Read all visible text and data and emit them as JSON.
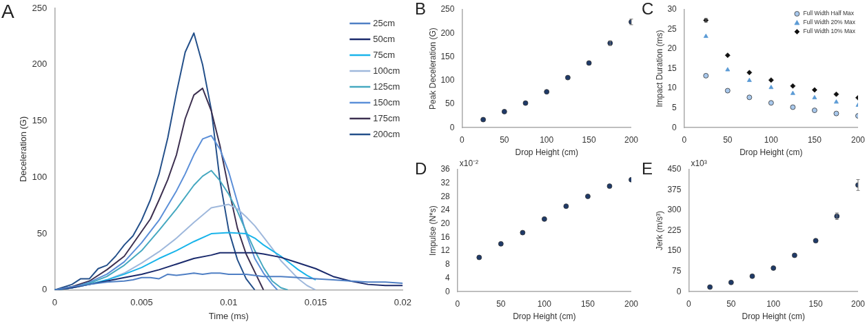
{
  "chart_data": [
    {
      "type": "line",
      "title": "A",
      "xlabel": "Time (ms)",
      "ylabel": "Deceleration (G)",
      "xlim": [
        0,
        0.02
      ],
      "xticks": [
        0,
        0.005,
        0.01,
        0.015,
        0.02
      ],
      "ylim": [
        0,
        250
      ],
      "yticks": [
        0,
        50,
        100,
        150,
        200,
        250
      ],
      "grid": false,
      "legend": "top right",
      "marker": "none",
      "line_style": "solid",
      "series": [
        {
          "name": "25cm",
          "color": "#4f7fc4",
          "x": [
            0,
            0.001,
            0.002,
            0.003,
            0.004,
            0.0045,
            0.005,
            0.0055,
            0.006,
            0.0065,
            0.007,
            0.0075,
            0.008,
            0.0085,
            0.009,
            0.0095,
            0.01,
            0.011,
            0.012,
            0.013,
            0.014,
            0.015,
            0.016,
            0.017,
            0.018,
            0.019,
            0.02
          ],
          "values": [
            0,
            3,
            5,
            7,
            8,
            9,
            11,
            11,
            10,
            14,
            13,
            14,
            15,
            14,
            15,
            15,
            14,
            14,
            12,
            12,
            11,
            10,
            9,
            8,
            7,
            7,
            6
          ]
        },
        {
          "name": "50cm",
          "color": "#1a2a6c",
          "x": [
            0,
            0.001,
            0.002,
            0.003,
            0.004,
            0.005,
            0.006,
            0.007,
            0.008,
            0.009,
            0.0095,
            0.01,
            0.011,
            0.0115,
            0.012,
            0.013,
            0.014,
            0.015,
            0.016,
            0.017,
            0.018,
            0.019,
            0.02
          ],
          "values": [
            0,
            2,
            5,
            8,
            11,
            14,
            18,
            23,
            28,
            31,
            33,
            33,
            33,
            33,
            32,
            29,
            24,
            19,
            12,
            8,
            5,
            4,
            4
          ]
        },
        {
          "name": "75cm",
          "color": "#19b4ea",
          "x": [
            0,
            0.001,
            0.002,
            0.003,
            0.004,
            0.005,
            0.006,
            0.007,
            0.008,
            0.009,
            0.01,
            0.011,
            0.0115,
            0.012,
            0.0125,
            0.013,
            0.0135,
            0.014,
            0.0145,
            0.015
          ],
          "values": [
            0,
            2,
            5,
            9,
            14,
            20,
            28,
            35,
            43,
            50,
            51,
            50,
            46,
            40,
            35,
            30,
            24,
            18,
            13,
            9
          ]
        },
        {
          "name": "100cm",
          "color": "#9fb8dc",
          "x": [
            0,
            0.001,
            0.002,
            0.003,
            0.004,
            0.005,
            0.006,
            0.007,
            0.008,
            0.009,
            0.01,
            0.0105,
            0.011,
            0.0115,
            0.012,
            0.0125,
            0.013,
            0.0135,
            0.014,
            0.0145,
            0.015
          ],
          "values": [
            0,
            2,
            5,
            9,
            15,
            24,
            34,
            46,
            60,
            73,
            76,
            72,
            65,
            57,
            47,
            37,
            26,
            18,
            10,
            4,
            0
          ]
        },
        {
          "name": "125cm",
          "color": "#45a8c0",
          "x": [
            0,
            0.001,
            0.002,
            0.003,
            0.004,
            0.005,
            0.006,
            0.007,
            0.008,
            0.0085,
            0.009,
            0.0095,
            0.01,
            0.0105,
            0.011,
            0.0115,
            0.012,
            0.0125,
            0.013,
            0.0134
          ],
          "values": [
            0,
            2,
            6,
            12,
            22,
            35,
            53,
            72,
            93,
            101,
            106,
            97,
            85,
            70,
            52,
            35,
            20,
            8,
            2,
            0
          ]
        },
        {
          "name": "150cm",
          "color": "#5b8fd8",
          "x": [
            0,
            0.001,
            0.002,
            0.003,
            0.004,
            0.005,
            0.006,
            0.007,
            0.0075,
            0.008,
            0.0085,
            0.009,
            0.0095,
            0.01,
            0.0105,
            0.011,
            0.0115,
            0.012,
            0.0125,
            0.0128
          ],
          "values": [
            0,
            2,
            7,
            14,
            25,
            42,
            62,
            88,
            103,
            120,
            134,
            137,
            125,
            105,
            78,
            50,
            28,
            15,
            5,
            0
          ]
        },
        {
          "name": "175cm",
          "color": "#3d3050",
          "x": [
            0,
            0.001,
            0.002,
            0.003,
            0.004,
            0.005,
            0.0055,
            0.006,
            0.0065,
            0.007,
            0.0075,
            0.008,
            0.0085,
            0.009,
            0.0095,
            0.01,
            0.0105,
            0.011,
            0.0115,
            0.012
          ],
          "values": [
            0,
            3,
            8,
            18,
            30,
            52,
            63,
            80,
            98,
            120,
            152,
            173,
            179,
            159,
            128,
            90,
            55,
            32,
            16,
            0
          ]
        },
        {
          "name": "200cm",
          "color": "#24508a",
          "x": [
            0,
            0.001,
            0.0015,
            0.002,
            0.0025,
            0.003,
            0.0035,
            0.004,
            0.0045,
            0.005,
            0.0055,
            0.006,
            0.0065,
            0.007,
            0.0075,
            0.008,
            0.0085,
            0.009,
            0.0095,
            0.01,
            0.0105,
            0.011,
            0.0115
          ],
          "values": [
            0,
            5,
            10,
            10,
            19,
            22,
            30,
            40,
            48,
            62,
            80,
            103,
            135,
            175,
            211,
            228,
            200,
            160,
            97,
            53,
            27,
            10,
            0
          ]
        }
      ]
    },
    {
      "type": "scatter",
      "title": "B",
      "xlabel": "Drop Height (cm)",
      "ylabel": "Peak Deceleration (G)",
      "xlim": [
        0,
        200
      ],
      "xticks": [
        0,
        50,
        100,
        150,
        200
      ],
      "ylim": [
        0,
        250
      ],
      "yticks": [
        0,
        50,
        100,
        150,
        200,
        250
      ],
      "grid": false,
      "marker": "circle",
      "color": "#1f3a68",
      "x": [
        25,
        50,
        75,
        100,
        125,
        150,
        175,
        200
      ],
      "values": [
        17,
        34,
        52,
        76,
        106,
        137,
        179,
        224
      ],
      "errors": [
        null,
        null,
        null,
        null,
        null,
        null,
        5,
        6
      ]
    },
    {
      "type": "scatter",
      "title": "C",
      "xlabel": "Drop Height (cm)",
      "ylabel": "Impact Duration (ms)",
      "xlim": [
        0,
        200
      ],
      "xticks": [
        0,
        50,
        100,
        150,
        200
      ],
      "ylim": [
        0,
        30
      ],
      "yticks": [
        0,
        5,
        10,
        15,
        20,
        25,
        30
      ],
      "grid": false,
      "legend": "top right",
      "x": [
        25,
        50,
        75,
        100,
        125,
        150,
        175,
        200
      ],
      "series": [
        {
          "name": "Full Width Half Max",
          "color": "#a8c8ec",
          "marker": "circle",
          "values": [
            13.2,
            9.4,
            7.7,
            6.3,
            5.2,
            4.4,
            3.6,
            3.0
          ]
        },
        {
          "name": "Full Width 20% Max",
          "color": "#5b9bd5",
          "marker": "triangle",
          "values": [
            23.2,
            14.7,
            12.0,
            10.2,
            8.7,
            7.6,
            6.5,
            5.7
          ]
        },
        {
          "name": "Full Width 10% Max",
          "color": "#111111",
          "marker": "diamond",
          "values": [
            27.3,
            18.4,
            14.0,
            12.1,
            10.6,
            9.6,
            8.5,
            7.6
          ],
          "errors": [
            0.5,
            null,
            null,
            null,
            null,
            null,
            null,
            null
          ]
        }
      ]
    },
    {
      "type": "scatter",
      "title": "D",
      "xlabel": "Drop Height (cm)",
      "ylabel": "Impulse (N*s)",
      "annotations": [
        "x10⁻²"
      ],
      "xlim": [
        0,
        200
      ],
      "xticks": [
        0,
        50,
        100,
        150,
        200
      ],
      "ylim": [
        0,
        36
      ],
      "yticks": [
        0,
        4,
        8,
        12,
        16,
        20,
        24,
        28,
        32,
        36
      ],
      "grid": false,
      "marker": "circle",
      "color": "#1f3a68",
      "x": [
        25,
        50,
        75,
        100,
        125,
        150,
        175,
        200
      ],
      "values": [
        10.1,
        14.1,
        17.4,
        21.4,
        25.2,
        28.1,
        31.1,
        33.0
      ]
    },
    {
      "type": "scatter",
      "title": "E",
      "xlabel": "Drop Height (cm)",
      "ylabel": "Jerk (m/s³)",
      "annotations": [
        "x10³"
      ],
      "xlim": [
        0,
        200
      ],
      "xticks": [
        0,
        50,
        100,
        150,
        200
      ],
      "ylim": [
        0,
        450
      ],
      "yticks": [
        0,
        75,
        150,
        225,
        300,
        375,
        450
      ],
      "grid": false,
      "marker": "circle",
      "color": "#1f3a68",
      "x": [
        25,
        50,
        75,
        100,
        125,
        150,
        175,
        200
      ],
      "values": [
        17,
        34,
        57,
        87,
        134,
        188,
        278,
        393
      ],
      "errors": [
        null,
        null,
        null,
        null,
        null,
        null,
        12,
        20
      ]
    }
  ]
}
